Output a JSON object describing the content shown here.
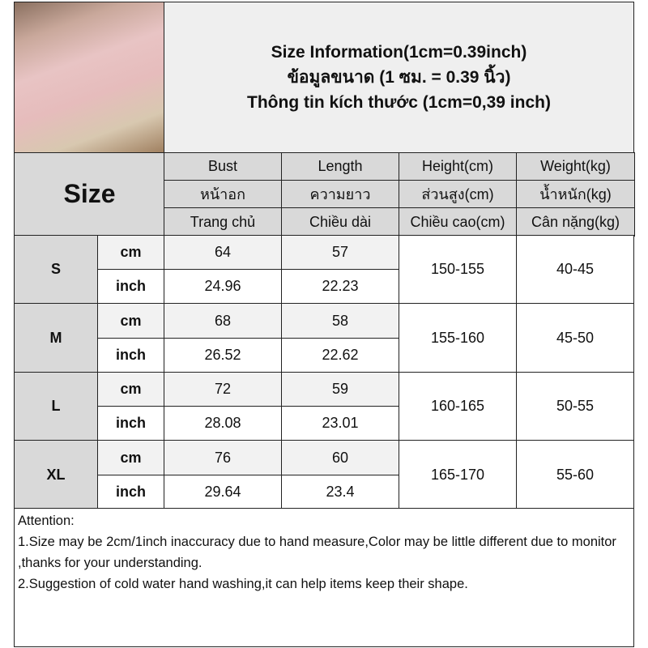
{
  "title": {
    "line1": "Size Information(1cm=0.39inch)",
    "line2": "ข้อมูลขนาด (1 ซม. = 0.39 นิ้ว)",
    "line3": "Thông tin kích thước (1cm=0,39 inch)"
  },
  "size_label": "Size",
  "columns": [
    {
      "en": "Bust",
      "th": "หน้าอก",
      "vi": "Trang chủ"
    },
    {
      "en": "Length",
      "th": "ความยาว",
      "vi": "Chiều dài"
    },
    {
      "en": "Height(cm)",
      "th": "ส่วนสูง(cm)",
      "vi": "Chiều cao(cm)"
    },
    {
      "en": "Weight(kg)",
      "th": "น้ำหนัก(kg)",
      "vi": "Cân nặng(kg)"
    }
  ],
  "units": {
    "cm": "cm",
    "inch": "inch"
  },
  "rows": [
    {
      "size": "S",
      "bust_cm": "64",
      "length_cm": "57",
      "bust_in": "24.96",
      "length_in": "22.23",
      "height": "150-155",
      "weight": "40-45"
    },
    {
      "size": "M",
      "bust_cm": "68",
      "length_cm": "58",
      "bust_in": "26.52",
      "length_in": "22.62",
      "height": "155-160",
      "weight": "45-50"
    },
    {
      "size": "L",
      "bust_cm": "72",
      "length_cm": "59",
      "bust_in": "28.08",
      "length_in": "23.01",
      "height": "160-165",
      "weight": "50-55"
    },
    {
      "size": "XL",
      "bust_cm": "76",
      "length_cm": "60",
      "bust_in": "29.64",
      "length_in": "23.4",
      "height": "165-170",
      "weight": "55-60"
    }
  ],
  "attention": {
    "heading": "Attention:",
    "note1": "1.Size may be 2cm/1inch inaccuracy due to hand measure,Color may be little different due to monitor ,thanks for your understanding.",
    "note2": "2.Suggestion of cold water hand washing,it can help items keep their shape."
  }
}
